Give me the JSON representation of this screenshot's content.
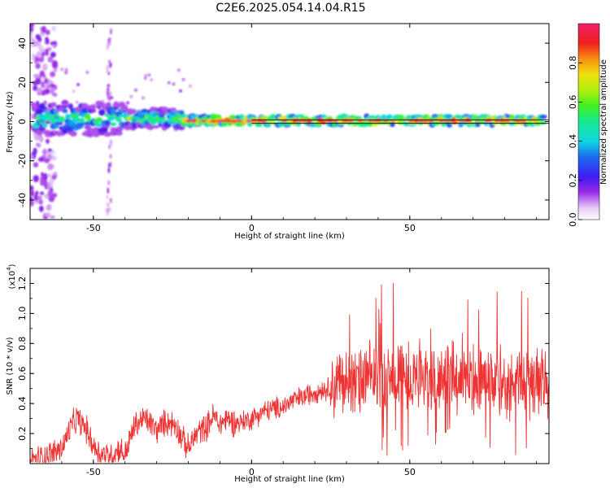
{
  "title": "C2E6.2025.054.14.04.R15",
  "colors": {
    "signal": "#ee3333",
    "frame": "#000000"
  },
  "chart_data": [
    {
      "type": "heatmap",
      "xlabel": "Height of straight line (km)",
      "ylabel": "Frequency (Hz)",
      "xlim": [
        -70,
        94
      ],
      "ylim": [
        -50,
        50
      ],
      "xticks": [
        -50,
        0,
        50
      ],
      "xtick_labels": [
        "-50",
        "0",
        "50"
      ],
      "yticks": [
        -40,
        -20,
        0,
        20,
        40
      ],
      "ytick_labels": [
        "-40",
        "-20",
        "0",
        "20",
        "40"
      ],
      "colorbar": {
        "label": "Normalized spectral amplitude",
        "range": [
          0,
          1
        ],
        "ticks": [
          0.0,
          0.2,
          0.4,
          0.6,
          0.8
        ],
        "tick_labels": [
          "0.0",
          "0.2",
          "0.4",
          "0.6",
          "0.8"
        ],
        "colormap": "rainbow: white-violet-purple-blue-cyan-green-yellow-orange-red-magenta"
      },
      "centerline_frequency": 0,
      "centerline_range": [
        0,
        94
      ]
    },
    {
      "type": "line",
      "xlabel": "Height of straight line (km)",
      "ylabel": "SNR (10 * v/v)",
      "scale_label": "(x10",
      "scale_exponent": "4",
      "xlim": [
        -70,
        94
      ],
      "ylim": [
        0,
        1.3
      ],
      "xticks": [
        -50,
        0,
        50
      ],
      "xtick_labels": [
        "-50",
        "0",
        "50"
      ],
      "yticks": [
        0.2,
        0.4,
        0.6,
        0.8,
        1.0,
        1.2
      ],
      "ytick_labels": [
        "0.2",
        "0.4",
        "0.6",
        "0.8",
        "1.0",
        "1.2"
      ],
      "series": [
        {
          "x": [
            -70,
            -65,
            -60,
            -57,
            -55,
            -52,
            -50,
            -48,
            -46,
            -44,
            -42,
            -40,
            -37,
            -34,
            -32,
            -30,
            -27,
            -24,
            -22,
            -20,
            -17,
            -14,
            -12,
            -10,
            -8,
            -5,
            -3,
            0,
            3,
            6,
            10,
            13,
            16,
            20,
            24,
            28,
            30,
            33,
            36,
            40,
            43,
            46,
            50,
            53,
            56,
            60,
            63,
            66,
            70,
            73,
            76,
            80,
            83,
            86,
            89,
            91,
            93
          ],
          "y": [
            0.02,
            0.05,
            0.1,
            0.25,
            0.3,
            0.22,
            0.12,
            0.07,
            0.06,
            0.05,
            0.1,
            0.06,
            0.25,
            0.3,
            0.27,
            0.22,
            0.28,
            0.26,
            0.17,
            0.1,
            0.21,
            0.25,
            0.32,
            0.26,
            0.3,
            0.27,
            0.28,
            0.3,
            0.34,
            0.36,
            0.38,
            0.42,
            0.44,
            0.48,
            0.5,
            0.54,
            0.55,
            0.52,
            0.56,
            0.58,
            0.54,
            0.6,
            0.56,
            0.6,
            0.55,
            0.58,
            0.6,
            0.56,
            0.58,
            0.55,
            0.56,
            0.52,
            0.55,
            0.53,
            0.5,
            0.55,
            0.55
          ]
        }
      ]
    }
  ]
}
